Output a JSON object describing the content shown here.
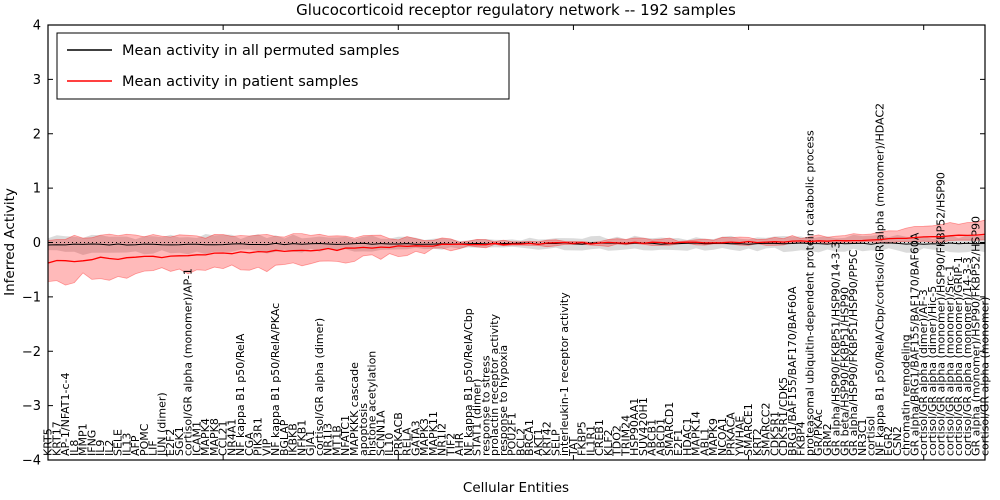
{
  "figure": {
    "background": "#ffffff"
  },
  "chart_data": {
    "type": "line",
    "title": "Glucocorticoid receptor regulatory network -- 192 samples",
    "xlabel": "Cellular Entities",
    "ylabel": "Inferred Activity",
    "ylim": [
      -4,
      4
    ],
    "yticks": [
      -4,
      -3,
      -2,
      -1,
      0,
      1,
      2,
      3,
      4
    ],
    "grid": false,
    "zero_line": {
      "y": 0,
      "style": "dotted",
      "color": "#000000"
    },
    "legend": {
      "position": "upper left",
      "entries": [
        {
          "label": "Mean activity in all permuted samples",
          "color": "#000000"
        },
        {
          "label": "Mean activity in patient samples",
          "color": "#ff0000"
        }
      ]
    },
    "n_entities": 108,
    "categories": [
      "KRT5",
      "KRT17",
      "AP-1/NFAT1-c-4",
      "IL8",
      "MMP1",
      "IFNG",
      "IL9",
      "IL2",
      "SELE",
      "IL13",
      "AFP",
      "POMC",
      "LIF",
      "JUN (dimer)",
      "E2F2",
      "SGK1",
      "cortisol/GR alpha (monomer)/AP-1",
      "ICAM1",
      "MAPK4",
      "MAPK8",
      "CCL21",
      "NR4A1",
      "NF kappa B1 p50/RelA",
      "CGA",
      "PIK3R1",
      "VIP",
      "NF kappa B1 p50/RelA/PKAc",
      "BGLAP",
      "IKBKB",
      "NFKB1",
      "GJA1",
      "cortisol/GR alpha (dimer)",
      "NR1I3",
      "MT1B",
      "NFATC1",
      "MAPKKK cascade",
      "apoptosis",
      "histone acetylation",
      "SCNN1A",
      "IL10",
      "PRKACB",
      "RELA",
      "GATA3",
      "MAPK3",
      "MAPK11",
      "NR1I2",
      "TIF2",
      "AHR",
      "NF kappa B1 p50/RelA/Cbp",
      "STAT1 (dimer)",
      "response to stress",
      "prolactin receptor activity",
      "response to hypoxia",
      "POU2F1",
      "BCL2",
      "BRCA1",
      "AKT1",
      "KRT42",
      "SELP",
      "interleukin-1 receptor activity",
      "TAT",
      "FKBP5",
      "IL1R1",
      "CREB1",
      "KLF2",
      "TDO2",
      "TRIM24",
      "HSP90AA1",
      "SUV420H1",
      "ABCB1",
      "ABCD1",
      "SMARCD1",
      "E2F1",
      "HDAC1",
      "MAPK14",
      "ABL1",
      "MAPK9",
      "NCOA1",
      "PRKACA",
      "YWHAE",
      "SMARCE1",
      "KRT2",
      "SMARCC2",
      "CDK5R1",
      "CDK5R1/CDK5",
      "BRG1/BAF155/BAF170/BAF60A",
      "FKBP4",
      "proteasomal ubiquitin-dependent protein catabolic process",
      "GR/PKAc",
      "GRM2",
      "GR alpha/HSP90/FKBP51/HSP90/14-3-3",
      "GR beta/HSP90/FKBP51/HSP90",
      "GR alpha/HSP90/FKBP51/HSP90/PP5C",
      "NR3C1",
      "cortisol",
      "NF kappa B1 p50/RelA/Cbp/cortisol/GR alpha (monomer)/HDAC2",
      "EGR2",
      "CSN2",
      "chromatin remodeling",
      "GR alpha/BRG1/BAF155/BAF170/BAF60A",
      "cortisol/GR alpha (dimer)/AF-3",
      "cortisol/GR alpha (dimer)/Hic-5",
      "cortisol/GR alpha (monomer)/HSP90/FKBP52/HSP90",
      "cortisol/GR alpha (monomer)/Src-1",
      "cortisol/GR alpha (monomer)/GRIP-1",
      "cortisol/GR alpha (monomer)/14-3-3",
      "GR alpha (monomer)/HSP90/FKBP52/HSP90",
      "cortisol/GR alpha (monomer)"
    ],
    "series": [
      {
        "name": "Mean activity in all permuted samples",
        "color": "#000000",
        "band_color": "#999999",
        "band_opacity": 0.35,
        "mean_points": [
          [
            0,
            -0.04
          ],
          [
            0.2,
            -0.03
          ],
          [
            0.5,
            -0.02
          ],
          [
            1,
            -0.02
          ]
        ],
        "band_halfwidth_points": [
          [
            0,
            0.15
          ],
          [
            0.1,
            0.14
          ],
          [
            0.2,
            0.14
          ],
          [
            0.3,
            0.13
          ],
          [
            0.4,
            0.1
          ],
          [
            0.45,
            0.06
          ],
          [
            0.5,
            0.08
          ],
          [
            0.6,
            0.11
          ],
          [
            0.7,
            0.1
          ],
          [
            0.8,
            0.12
          ],
          [
            0.9,
            0.13
          ],
          [
            1.0,
            0.12
          ]
        ]
      },
      {
        "name": "Mean activity in patient samples",
        "color": "#ff0000",
        "band_color": "#ff0000",
        "band_opacity": 0.27,
        "mean_points": [
          [
            0,
            -0.36
          ],
          [
            0.05,
            -0.3
          ],
          [
            0.1,
            -0.27
          ],
          [
            0.15,
            -0.23
          ],
          [
            0.2,
            -0.2
          ],
          [
            0.25,
            -0.16
          ],
          [
            0.3,
            -0.13
          ],
          [
            0.35,
            -0.09
          ],
          [
            0.4,
            -0.06
          ],
          [
            0.45,
            -0.03
          ],
          [
            0.5,
            -0.02
          ],
          [
            0.6,
            -0.01
          ],
          [
            0.7,
            0.0
          ],
          [
            0.8,
            0.02
          ],
          [
            0.85,
            0.03
          ],
          [
            0.9,
            0.07
          ],
          [
            0.95,
            0.11
          ],
          [
            1.0,
            0.15
          ]
        ],
        "band_upper_points": [
          [
            0,
            0.08
          ],
          [
            0.05,
            0.12
          ],
          [
            0.1,
            0.1
          ],
          [
            0.15,
            0.13
          ],
          [
            0.2,
            0.1
          ],
          [
            0.25,
            0.13
          ],
          [
            0.3,
            0.11
          ],
          [
            0.35,
            0.1
          ],
          [
            0.4,
            0.07
          ],
          [
            0.45,
            0.03
          ],
          [
            0.5,
            0.02
          ],
          [
            0.55,
            0.04
          ],
          [
            0.6,
            0.04
          ],
          [
            0.65,
            0.05
          ],
          [
            0.7,
            0.06
          ],
          [
            0.75,
            0.07
          ],
          [
            0.8,
            0.1
          ],
          [
            0.85,
            0.13
          ],
          [
            0.9,
            0.22
          ],
          [
            0.95,
            0.32
          ],
          [
            1.0,
            0.4
          ]
        ],
        "band_lower_points": [
          [
            0,
            -0.8
          ],
          [
            0.04,
            -0.6
          ],
          [
            0.08,
            -0.66
          ],
          [
            0.12,
            -0.52
          ],
          [
            0.16,
            -0.56
          ],
          [
            0.2,
            -0.46
          ],
          [
            0.24,
            -0.48
          ],
          [
            0.28,
            -0.37
          ],
          [
            0.32,
            -0.33
          ],
          [
            0.36,
            -0.26
          ],
          [
            0.4,
            -0.18
          ],
          [
            0.44,
            -0.1
          ],
          [
            0.48,
            -0.05
          ],
          [
            0.55,
            -0.05
          ],
          [
            0.6,
            -0.04
          ],
          [
            0.7,
            -0.03
          ],
          [
            0.8,
            -0.02
          ],
          [
            0.9,
            0.0
          ],
          [
            0.95,
            0.02
          ],
          [
            1.0,
            0.04
          ]
        ]
      }
    ]
  }
}
